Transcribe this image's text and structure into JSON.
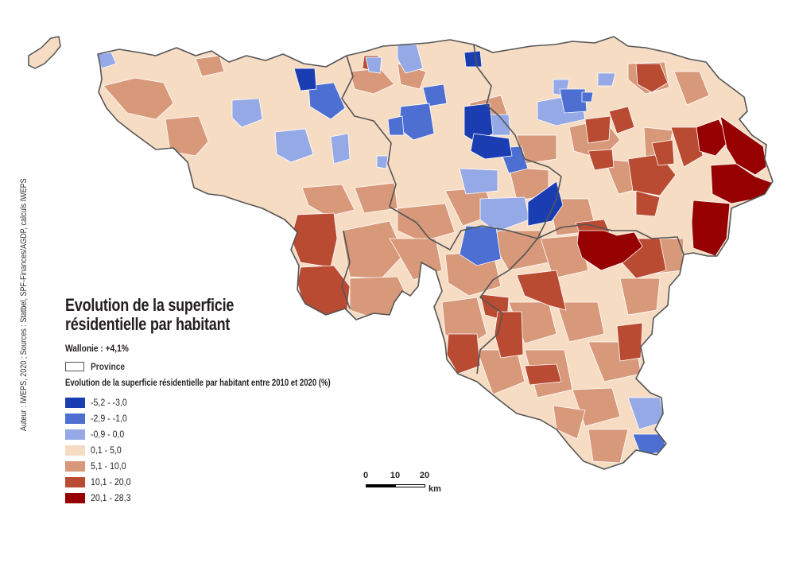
{
  "title_line1": "Evolution de la superficie",
  "title_line2": "résidentielle par habitant",
  "subtitle": "Wallonie : +4,1%",
  "province_label": "Province",
  "legend_title": "Evolution de la superficie résidentielle par habitant entre 2010 et 2020 (%)",
  "legend": [
    {
      "label": "-5,2 - -3,0",
      "color": "#1a3eb1"
    },
    {
      "label": "-2,9 - -1,0",
      "color": "#4d6fd2"
    },
    {
      "label": "-0,9 - 0,0",
      "color": "#94a9e6"
    },
    {
      "label": "0,1 - 5,0",
      "color": "#f7dcc4"
    },
    {
      "label": "5,1 - 10,0",
      "color": "#d8987a"
    },
    {
      "label": "10,1 - 20,0",
      "color": "#ba4b33"
    },
    {
      "label": "20,1 - 28,3",
      "color": "#960000"
    }
  ],
  "credits": "Auteur : IWEPS, 2020 ; Sources : Statbel, SPF-Finances/AGDP, calculs IWEPS",
  "scale": {
    "ticks": [
      "0",
      "10",
      "20"
    ],
    "unit": "km"
  },
  "map": {
    "title": "",
    "province_border_color": "#555555",
    "municipality_border_color": "#ffffff"
  }
}
